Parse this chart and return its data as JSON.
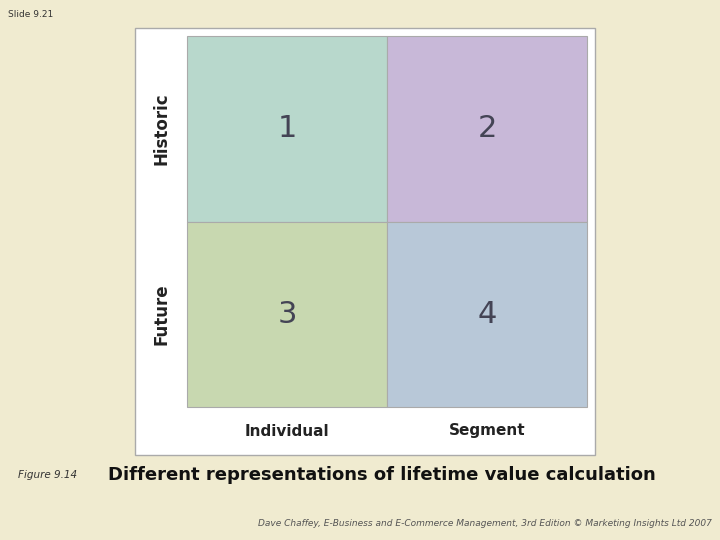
{
  "background_color": "#f0ebd0",
  "slide_label": "Slide 9.21",
  "figure_box_color": "#ffffff",
  "figure_box_border": "#aaaaaa",
  "cell_colors": {
    "top_left": "#b8d8cc",
    "top_right": "#c8b8d8",
    "bottom_left": "#c8d8b0",
    "bottom_right": "#b8c8d8"
  },
  "cell_numbers": [
    "1",
    "2",
    "3",
    "4"
  ],
  "cell_number_color": "#444455",
  "cell_number_fontsize": 22,
  "row_labels": [
    "Historic",
    "Future"
  ],
  "row_label_color": "#222222",
  "row_label_fontsize": 12,
  "col_labels": [
    "Individual",
    "Segment"
  ],
  "col_label_color": "#222222",
  "col_label_fontsize": 11,
  "figure_title_small": "Figure 9.14",
  "figure_title_main": "Different representations of lifetime value calculation",
  "footer_text": "Dave Chaffey, E-Business and E-Commerce Management, 3rd Edition © Marketing Insights Ltd 2007",
  "footer_fontsize": 6.5
}
